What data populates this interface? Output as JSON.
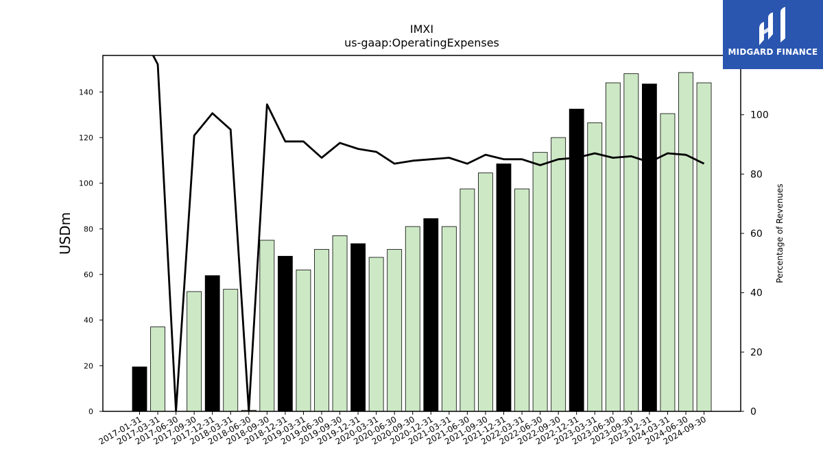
{
  "chart_data": {
    "type": "bar",
    "title": "IMXI",
    "subtitle": "us-gaap:OperatingExpenses",
    "ylabel": "USDm",
    "ylabel_right": "Percentage of Revenues",
    "ylim": [
      0,
      156
    ],
    "ylim_right": [
      0,
      120
    ],
    "yticks": [
      0,
      20,
      40,
      60,
      80,
      100,
      120,
      140
    ],
    "yticks_right": [
      0,
      20,
      40,
      60,
      80,
      100
    ],
    "categories": [
      "2017-01-31",
      "2017-03-31",
      "2017-06-30",
      "2017-09-30",
      "2017-12-31",
      "2018-03-31",
      "2018-06-30",
      "2018-09-30",
      "2018-12-31",
      "2019-03-31",
      "2019-06-30",
      "2019-09-30",
      "2019-12-31",
      "2020-03-31",
      "2020-06-30",
      "2020-09-30",
      "2020-12-31",
      "2021-03-31",
      "2021-06-30",
      "2021-09-30",
      "2021-12-31",
      "2022-03-31",
      "2022-06-30",
      "2022-09-30",
      "2022-12-31",
      "2023-03-31",
      "2023-06-30",
      "2023-09-30",
      "2023-12-31",
      "2024-03-31",
      "2024-06-30",
      "2024-09-30"
    ],
    "series": [
      {
        "values": [
          19.5,
          37,
          0,
          52.5,
          59.5,
          53.5,
          0.5,
          75,
          68,
          62,
          71,
          77,
          73.5,
          67.5,
          71,
          81,
          84.5,
          81,
          97.5,
          104.5,
          108.5,
          97.5,
          113.5,
          120,
          132.5,
          126.5,
          144,
          148,
          143.5,
          130.5,
          148.5,
          144
        ],
        "highlight": [
          true,
          false,
          false,
          false,
          true,
          false,
          false,
          false,
          true,
          false,
          false,
          false,
          true,
          false,
          false,
          false,
          true,
          false,
          false,
          false,
          true,
          false,
          false,
          false,
          true,
          false,
          false,
          false,
          true,
          false,
          false,
          false
        ]
      },
      {
        "axis": "right",
        "type": "line",
        "values": [
          null,
          117,
          0,
          93,
          100.5,
          95,
          0,
          103.5,
          91,
          91,
          85.5,
          90.5,
          88.5,
          87.5,
          83.5,
          84.5,
          85,
          85.5,
          83.5,
          86.5,
          85,
          85,
          83,
          85,
          85.5,
          87,
          85.5,
          86,
          84,
          87,
          86.5,
          83.5
        ]
      }
    ],
    "colors": {
      "bar_regular": "#cde8c5",
      "bar_highlight": "#000000",
      "line": "#000000",
      "bar_edge": "#000000"
    },
    "grid": false,
    "legend": "none"
  },
  "logo": {
    "brand_text": "MIDGARD FINANCE"
  }
}
